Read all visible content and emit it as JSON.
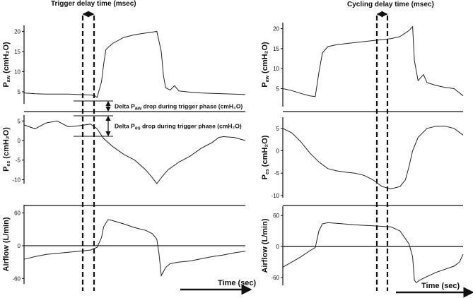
{
  "chart_data": [
    {
      "type": "line",
      "panel": "left",
      "title": "Trigger delay time (msec)",
      "xlabel": "Time (sec)",
      "annotations": [
        {
          "main": "Delta P",
          "sub": "aw",
          "rest": " drop during trigger phase (cmH₂O)"
        },
        {
          "main": "Delta P",
          "sub": "es",
          "rest": " drop during trigger phase (cmH₂O)"
        }
      ],
      "subplots": [
        {
          "ylabel": {
            "main": "P",
            "sub": "aw",
            "rest": " (cmH₂O)"
          },
          "yticks": [
            "5",
            "10",
            "15",
            "20"
          ],
          "ylim": [
            2,
            21.5
          ],
          "x": [
            0,
            0.05,
            0.1,
            0.15,
            0.2,
            0.25,
            0.3,
            0.32,
            0.33,
            0.35,
            0.36,
            0.37,
            0.38,
            0.4,
            0.45,
            0.5,
            0.55,
            0.6,
            0.62,
            0.63,
            0.64,
            0.66,
            0.68,
            0.7,
            0.75,
            0.8,
            0.85,
            0.9,
            0.95,
            1.0
          ],
          "values": [
            4.7,
            4.5,
            4.4,
            4.4,
            4.4,
            4.3,
            4.2,
            4.0,
            3.6,
            7.5,
            12.0,
            15.5,
            16.0,
            17.0,
            18.5,
            19.2,
            19.6,
            20.0,
            15.0,
            9.0,
            6.0,
            5.4,
            6.5,
            5.2,
            4.9,
            4.7,
            4.6,
            4.5,
            4.4,
            4.3
          ]
        },
        {
          "ylabel": {
            "main": "P",
            "sub": "es",
            "rest": " (cmH₂O)"
          },
          "yticks": [
            "-10",
            "-5",
            "0",
            "5"
          ],
          "ylim": [
            -11,
            6.5
          ],
          "x": [
            0,
            0.05,
            0.1,
            0.15,
            0.2,
            0.25,
            0.3,
            0.33,
            0.36,
            0.4,
            0.45,
            0.5,
            0.55,
            0.58,
            0.6,
            0.62,
            0.65,
            0.7,
            0.75,
            0.8,
            0.85,
            0.88,
            0.9,
            0.95,
            1.0
          ],
          "values": [
            4.0,
            3.0,
            4.5,
            5.0,
            3.5,
            3.8,
            4.2,
            3.0,
            0.5,
            -1.5,
            -3.5,
            -5.0,
            -7.5,
            -9.5,
            -11.0,
            -9.5,
            -7.5,
            -5.5,
            -4.0,
            -2.0,
            -0.5,
            0.8,
            1.0,
            0.8,
            0.0
          ]
        },
        {
          "ylabel": {
            "main": "Airflow (L/min)",
            "sub": "",
            "rest": ""
          },
          "yticks": [
            "-60",
            "0",
            "60"
          ],
          "ylim": [
            -70,
            75
          ],
          "x": [
            0,
            0.05,
            0.1,
            0.15,
            0.2,
            0.25,
            0.3,
            0.33,
            0.35,
            0.36,
            0.38,
            0.4,
            0.45,
            0.5,
            0.55,
            0.58,
            0.6,
            0.61,
            0.62,
            0.64,
            0.66,
            0.7,
            0.75,
            0.8,
            0.85,
            0.9,
            0.95,
            1.0
          ],
          "values": [
            -25,
            -20,
            -16,
            -14,
            -12,
            -10,
            -8,
            -3,
            15,
            35,
            48,
            46,
            40,
            33,
            28,
            22,
            12,
            -15,
            -55,
            -40,
            -33,
            -30,
            -28,
            -24,
            -20,
            -17,
            -13,
            -10
          ]
        }
      ]
    },
    {
      "type": "line",
      "panel": "right",
      "title": "Cycling delay time (msec)",
      "xlabel": "Time (sec)",
      "subplots": [
        {
          "ylabel": {
            "main": "P",
            "sub": "aw",
            "rest": " (cmH₂O)"
          },
          "yticks": [
            "5",
            "10",
            "15",
            "20"
          ],
          "ylim": [
            0.5,
            21.5
          ],
          "x": [
            0,
            0.05,
            0.1,
            0.15,
            0.18,
            0.2,
            0.22,
            0.25,
            0.3,
            0.4,
            0.5,
            0.6,
            0.65,
            0.7,
            0.72,
            0.73,
            0.75,
            0.78,
            0.8,
            0.85,
            0.9,
            0.95,
            1.0
          ],
          "values": [
            5.0,
            4.5,
            3.8,
            3.2,
            3.0,
            9.0,
            14.0,
            15.5,
            16.0,
            16.5,
            17.0,
            17.5,
            18.0,
            19.5,
            20.5,
            12.0,
            7.0,
            8.5,
            6.5,
            5.8,
            5.3,
            5.0,
            3.2
          ]
        },
        {
          "ylabel": {
            "main": "P",
            "sub": "es",
            "rest": " (cmH₂O)"
          },
          "yticks": [
            "-10",
            "-5",
            "0",
            "5"
          ],
          "ylim": [
            -10.5,
            7.5
          ],
          "x": [
            0,
            0.05,
            0.1,
            0.15,
            0.2,
            0.25,
            0.3,
            0.35,
            0.4,
            0.45,
            0.5,
            0.55,
            0.6,
            0.65,
            0.68,
            0.7,
            0.72,
            0.75,
            0.8,
            0.85,
            0.9,
            0.95,
            1.0
          ],
          "values": [
            5.0,
            4.0,
            2.0,
            -0.5,
            -2.5,
            -4.0,
            -4.5,
            -4.8,
            -5.0,
            -5.5,
            -6.5,
            -8.0,
            -8.5,
            -8.0,
            -6.5,
            -3.5,
            0.0,
            3.0,
            5.0,
            5.5,
            5.5,
            5.0,
            3.5
          ]
        },
        {
          "ylabel": {
            "main": "Airflow (L/min)",
            "sub": "",
            "rest": ""
          },
          "yticks": [
            "-60",
            "0",
            "60"
          ],
          "ylim": [
            -75,
            78
          ],
          "x": [
            0,
            0.05,
            0.1,
            0.15,
            0.18,
            0.2,
            0.22,
            0.25,
            0.3,
            0.4,
            0.5,
            0.6,
            0.65,
            0.7,
            0.72,
            0.73,
            0.74,
            0.76,
            0.8,
            0.85,
            0.9,
            0.95,
            0.98,
            1.0
          ],
          "values": [
            -40,
            -30,
            -20,
            -8,
            -2,
            30,
            44,
            46,
            45,
            42,
            40,
            38,
            30,
            5,
            -20,
            -65,
            -70,
            -65,
            -58,
            -50,
            -44,
            -38,
            -30,
            -15
          ]
        }
      ]
    }
  ]
}
